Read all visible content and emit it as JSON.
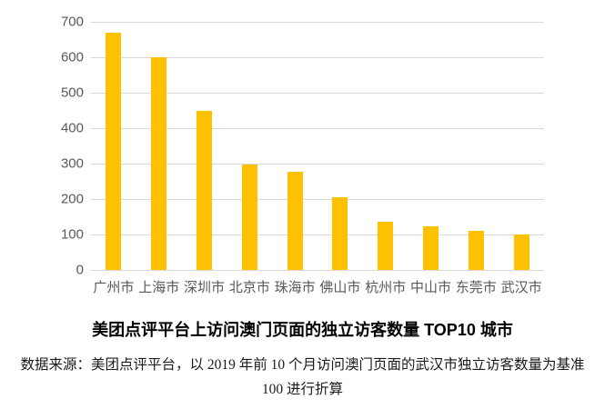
{
  "title": "美团点评平台上访问澳门页面的独立访客数量 TOP10 城市",
  "source_note": "数据来源：美团点评平台，以 2019 年前 10 个月访问澳门页面的武汉市独立访客数量为基准 100 进行折算",
  "colors": {
    "bar": "#ffc000",
    "gridline": "#d9d9d9",
    "axis_label": "#595959",
    "title_text": "#000000",
    "source_text": "#1a1a1a"
  },
  "chart_data": {
    "type": "bar",
    "categories": [
      "广州市",
      "上海市",
      "深圳市",
      "北京市",
      "珠海市",
      "佛山市",
      "杭州市",
      "中山市",
      "东莞市",
      "武汉市"
    ],
    "values": [
      670,
      600,
      450,
      297,
      278,
      205,
      135,
      122,
      110,
      100
    ],
    "title": "美团点评平台上访问澳门页面的独立访客数量 TOP10 城市",
    "xlabel": "",
    "ylabel": "",
    "ylim": [
      0,
      700
    ],
    "ytick_interval": 100,
    "yticks": [
      0,
      100,
      200,
      300,
      400,
      500,
      600,
      700
    ],
    "grid": "horizontal",
    "legend": "none",
    "bar_color": "#ffc000",
    "baseline_note": "武汉市 independent visitor count = base 100"
  }
}
